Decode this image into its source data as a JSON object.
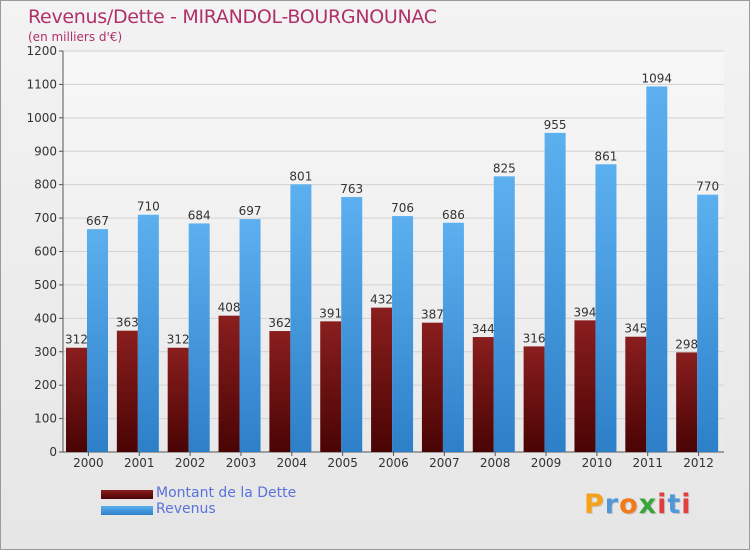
{
  "header": {
    "title": "Revenus/Dette - MIRANDOL-BOURGNOUNAC",
    "subtitle": "(en milliers d'€)"
  },
  "logo": {
    "text": "Proxiti",
    "colors": [
      "#f5a21a",
      "#4f97d8",
      "#f07a1a",
      "#3aa53a",
      "#e13e3e",
      "#4f97d8",
      "#e13e3e"
    ]
  },
  "chart_data": {
    "type": "bar",
    "title": "Revenus/Dette - MIRANDOL-BOURGNOUNAC",
    "subtitle": "(en milliers d'€)",
    "categories": [
      "2000",
      "2001",
      "2002",
      "2003",
      "2004",
      "2005",
      "2006",
      "2007",
      "2008",
      "2009",
      "2010",
      "2011",
      "2012"
    ],
    "series": [
      {
        "name": "Montant de la Dette",
        "color": "#7a0e0e",
        "values": [
          312,
          363,
          312,
          408,
          362,
          391,
          432,
          387,
          344,
          316,
          394,
          345,
          298
        ]
      },
      {
        "name": "Revenus",
        "color": "#4da3e6",
        "values": [
          667,
          710,
          684,
          697,
          801,
          763,
          706,
          686,
          825,
          955,
          861,
          1094,
          770
        ]
      }
    ],
    "ylim": [
      0,
      1200
    ],
    "yticks": [
      0,
      100,
      200,
      300,
      400,
      500,
      600,
      700,
      800,
      900,
      1000,
      1100,
      1200
    ],
    "grid": true,
    "legend_position": "bottom-left"
  }
}
